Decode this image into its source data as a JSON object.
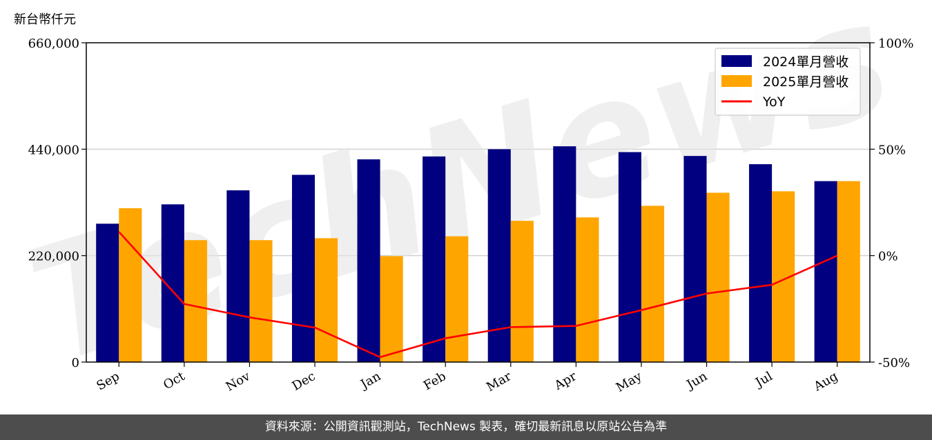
{
  "watermark": "TechNews",
  "footer": {
    "source": "資料來源：公開資訊觀測站，TechNews 製表，確切最新訊息以原站公告為準"
  },
  "chart_data": {
    "type": "bar",
    "unit_label": "新台幣仟元",
    "categories": [
      "Sep",
      "Oct",
      "Nov",
      "Dec",
      "Jan",
      "Feb",
      "Mar",
      "Apr",
      "May",
      "Jun",
      "Jul",
      "Aug"
    ],
    "series": [
      {
        "name": "2024單月營收",
        "type": "bar",
        "color": "#000080",
        "values": [
          286000,
          326000,
          355000,
          387000,
          419000,
          425000,
          440000,
          446000,
          434000,
          426000,
          409000,
          374000
        ]
      },
      {
        "name": "2025單月營收",
        "type": "bar",
        "color": "#ffa500",
        "values": [
          318000,
          252000,
          252000,
          256000,
          219000,
          260000,
          292000,
          299000,
          323000,
          350000,
          353000,
          374000
        ]
      },
      {
        "name": "YoY",
        "type": "line",
        "axis": "right",
        "color": "#ff0000",
        "values": [
          11.2,
          -22.7,
          -29.0,
          -33.8,
          -47.7,
          -38.8,
          -33.6,
          -33.0,
          -25.6,
          -17.8,
          -13.7,
          0.0
        ]
      }
    ],
    "ylim": [
      0,
      660000
    ],
    "yticks": [
      "0",
      "220,000",
      "440,000",
      "660,000"
    ],
    "y2lim": [
      -50,
      100
    ],
    "y2ticks": [
      "-50%",
      "0%",
      "50%",
      "100%"
    ],
    "grid": true,
    "legend": "top-right"
  }
}
